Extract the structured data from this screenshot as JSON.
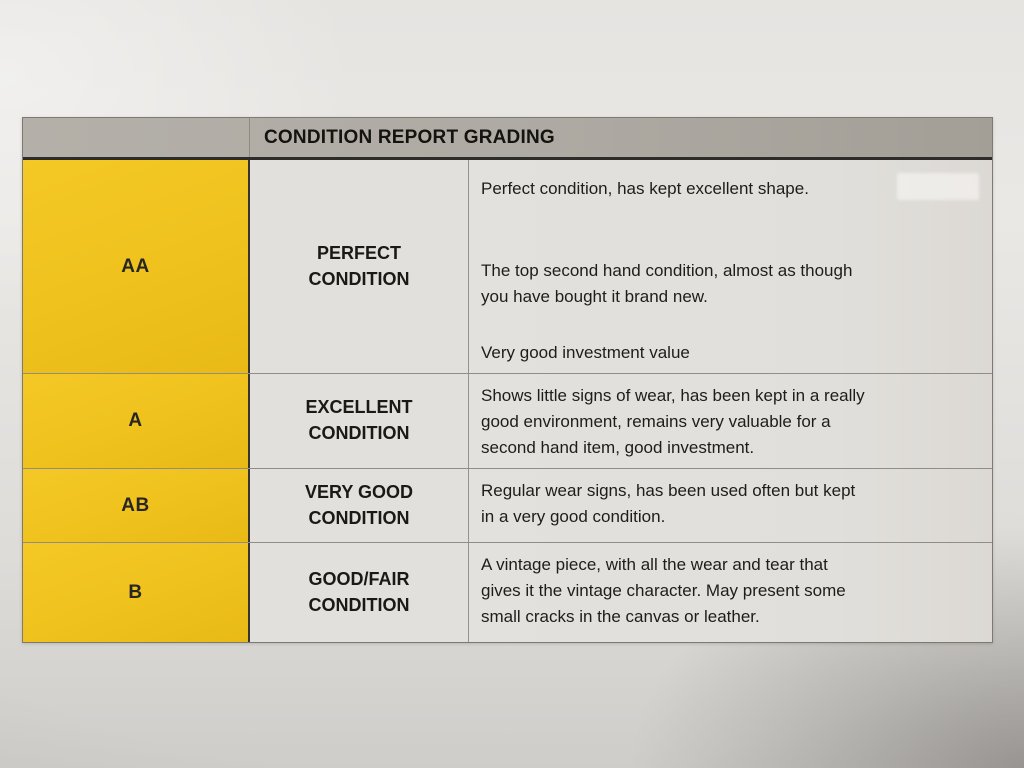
{
  "colors": {
    "paper": "#e7e5e2",
    "header_gray": "#aeaaa3",
    "cell_gray": "#e2e0dc",
    "grade_yellow": "#f0c31f",
    "text_dark": "#1e1d1b",
    "line_dark": "#2e2c28",
    "line_light": "#918d85"
  },
  "table": {
    "title": "CONDITION REPORT GRADING",
    "rows": [
      {
        "grade": "AA",
        "condition": "PERFECT\nCONDITION",
        "description": [
          [
            "Perfect condition, has kept excellent shape."
          ],
          [
            "The top second hand condition, almost as though",
            "you have bought it brand new."
          ],
          [
            "Very good investment value"
          ]
        ]
      },
      {
        "grade": "A",
        "condition": "EXCELLENT\nCONDITION",
        "description": [
          [
            "Shows little signs of wear, has been kept in a really",
            "good environment, remains very valuable for a",
            "second hand item, good investment."
          ]
        ]
      },
      {
        "grade": "AB",
        "condition": "VERY GOOD\nCONDITION",
        "description": [
          [
            "Regular wear signs, has been used often but kept",
            "in a very good condition."
          ]
        ]
      },
      {
        "grade": "B",
        "condition": "GOOD/FAIR\nCONDITION",
        "description": [
          [
            "A vintage piece, with all the wear and tear that",
            "gives it the vintage character. May present some",
            "small cracks in the canvas or leather."
          ]
        ]
      }
    ]
  }
}
